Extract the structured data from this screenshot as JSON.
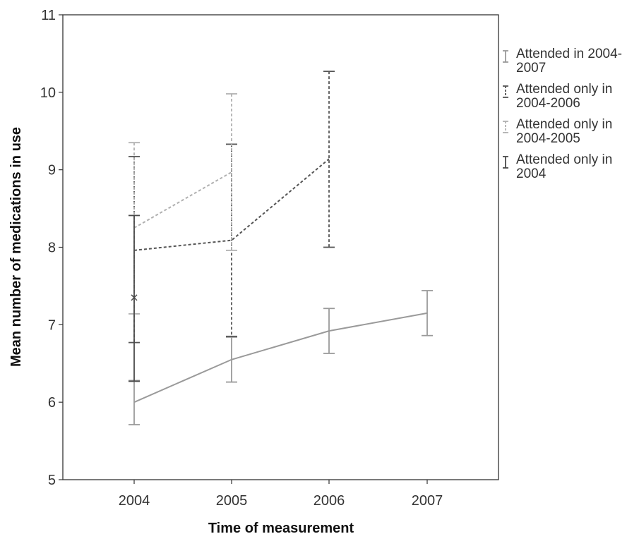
{
  "chart_data": {
    "type": "line",
    "title": "",
    "xlabel": "Time of measurement",
    "ylabel": "Mean number of medications in use",
    "categories": [
      "2004",
      "2005",
      "2006",
      "2007"
    ],
    "ylim": [
      5,
      11
    ],
    "yticks": [
      "5",
      "6",
      "7",
      "8",
      "9",
      "10",
      "11"
    ],
    "grid": false,
    "legend_position": "right",
    "error_bars": true,
    "series": [
      {
        "name": "Attended in 2004-2007",
        "legend_lines": [
          "Attended in 2004-",
          "2007"
        ],
        "color": "#9a9a9a",
        "dash": "solid",
        "values": [
          6.0,
          6.55,
          6.92,
          7.15
        ],
        "lower": [
          5.71,
          6.26,
          6.63,
          6.86
        ],
        "upper": [
          6.28,
          6.84,
          7.21,
          7.44
        ]
      },
      {
        "name": "Attended only in 2004-2006",
        "legend_lines": [
          "Attended only in",
          "2004-2006"
        ],
        "color": "#555555",
        "dash": "dashed",
        "values": [
          7.96,
          8.09,
          9.14,
          null
        ],
        "lower": [
          6.77,
          6.85,
          8.0,
          null
        ],
        "upper": [
          9.17,
          9.33,
          10.27,
          null
        ]
      },
      {
        "name": "Attended only in 2004-2005",
        "legend_lines": [
          "Attended only in",
          "2004-2005"
        ],
        "color": "#b0b0b0",
        "dash": "dashed",
        "values": [
          8.25,
          8.97,
          null,
          null
        ],
        "lower": [
          7.14,
          7.96,
          null,
          null
        ],
        "upper": [
          9.35,
          9.98,
          null,
          null
        ]
      },
      {
        "name": "Attended only in 2004",
        "legend_lines": [
          "Attended only in",
          "2004"
        ],
        "color": "#4a4a4a",
        "dash": "solid",
        "values": [
          7.35,
          null,
          null,
          null
        ],
        "lower": [
          6.27,
          null,
          null,
          null
        ],
        "upper": [
          8.41,
          null,
          null,
          null
        ]
      }
    ]
  }
}
